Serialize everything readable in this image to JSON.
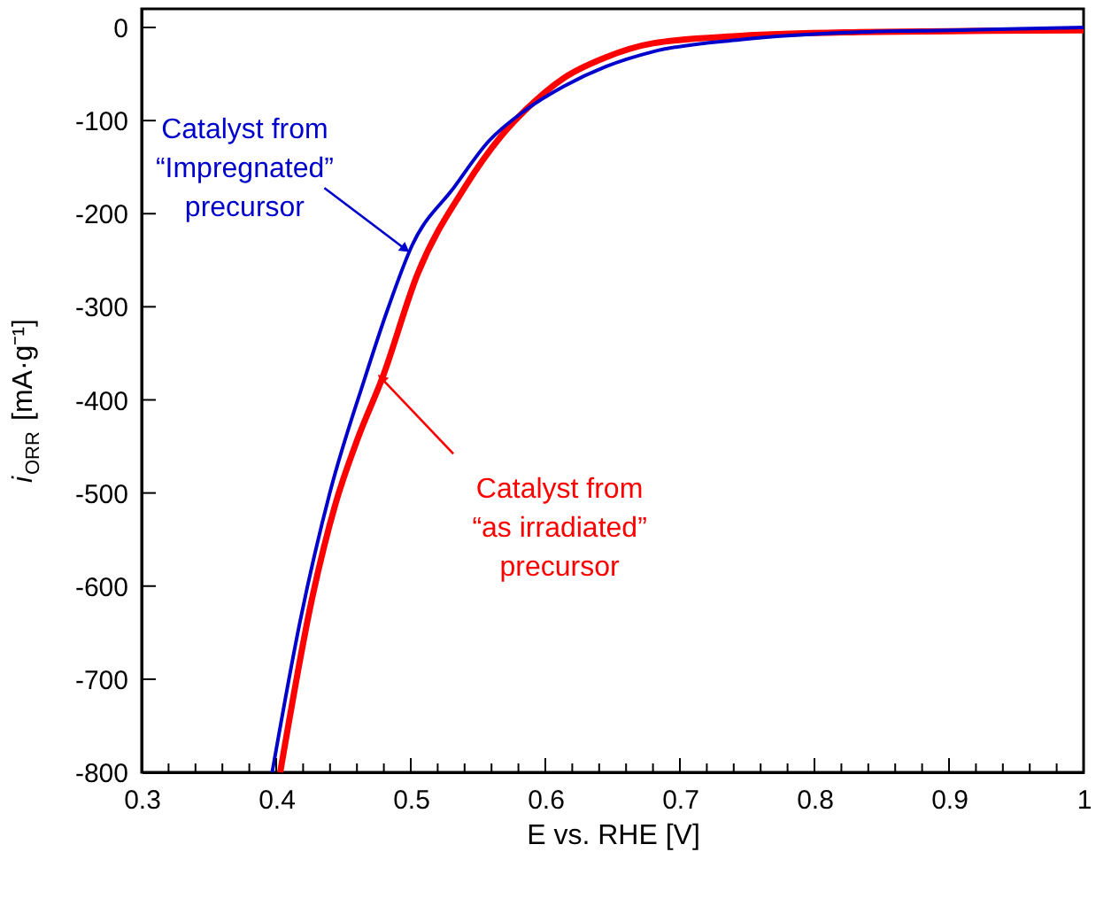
{
  "chart_data": {
    "type": "line",
    "xlabel": "E vs. RHE [V]",
    "ylabel": "i$_{ORR}$ [mA·g⁻¹]",
    "xlim": [
      0.3,
      1.0
    ],
    "ylim": [
      -800,
      20
    ],
    "xticks": [
      0.3,
      {
        "value": 0.32,
        "label": null
      },
      {
        "value": 0.34,
        "label": null
      },
      {
        "value": 0.36,
        "label": null
      },
      {
        "value": 0.38,
        "label": null
      },
      0.4,
      {
        "value": 0.42,
        "label": null
      },
      {
        "value": 0.44,
        "label": null
      },
      {
        "value": 0.46,
        "label": null
      },
      {
        "value": 0.48,
        "label": null
      },
      0.5,
      {
        "value": 0.52,
        "label": null
      },
      {
        "value": 0.54,
        "label": null
      },
      {
        "value": 0.56,
        "label": null
      },
      {
        "value": 0.58,
        "label": null
      },
      0.6,
      {
        "value": 0.62,
        "label": null
      },
      {
        "value": 0.64,
        "label": null
      },
      {
        "value": 0.66,
        "label": null
      },
      {
        "value": 0.68,
        "label": null
      },
      0.7,
      {
        "value": 0.72,
        "label": null
      },
      {
        "value": 0.74,
        "label": null
      },
      {
        "value": 0.76,
        "label": null
      },
      {
        "value": 0.78,
        "label": null
      },
      0.8,
      {
        "value": 0.82,
        "label": null
      },
      {
        "value": 0.84,
        "label": null
      },
      {
        "value": 0.86,
        "label": null
      },
      {
        "value": 0.88,
        "label": null
      },
      0.9,
      {
        "value": 0.92,
        "label": null
      },
      {
        "value": 0.94,
        "label": null
      },
      {
        "value": 0.96,
        "label": null
      },
      {
        "value": 0.98,
        "label": null
      },
      1
    ],
    "yticks": [
      -800,
      -700,
      -600,
      -500,
      -400,
      -300,
      -200,
      -100,
      0
    ],
    "grid": false,
    "marker": "none",
    "line_style": "solid",
    "series": [
      {
        "color": "#ff0000",
        "x": [
          0.403,
          0.427,
          0.444,
          0.461,
          0.479,
          0.505,
          0.54,
          0.567,
          0.585,
          0.614,
          0.645,
          0.68,
          0.745,
          0.833,
          0.9,
          1.0
        ],
        "values": [
          -800,
          -611,
          -512,
          -440,
          -376,
          -265,
          -172,
          -117,
          -89,
          -54,
          -32,
          -17,
          -9,
          -5,
          -4,
          -3
        ]
      },
      {
        "color": "#0000cc",
        "x": [
          0.397,
          0.418,
          0.44,
          0.466,
          0.483,
          0.501,
          0.532,
          0.558,
          0.585,
          0.614,
          0.645,
          0.68,
          0.745,
          0.833,
          0.9,
          1.0
        ],
        "values": [
          -800,
          -636,
          -499,
          -376,
          -302,
          -234,
          -172,
          -122,
          -89,
          -63,
          -42,
          -26,
          -13,
          -5,
          -3,
          0
        ]
      }
    ],
    "annotations": [
      {
        "text": "Catalyst from\n“Impregnated”\nprecursor",
        "x": 0.495,
        "y": -237
      },
      {
        "text": "Catalyst from\n“as irradiated”\nprecursor",
        "x": 0.479,
        "y": -378
      }
    ]
  }
}
